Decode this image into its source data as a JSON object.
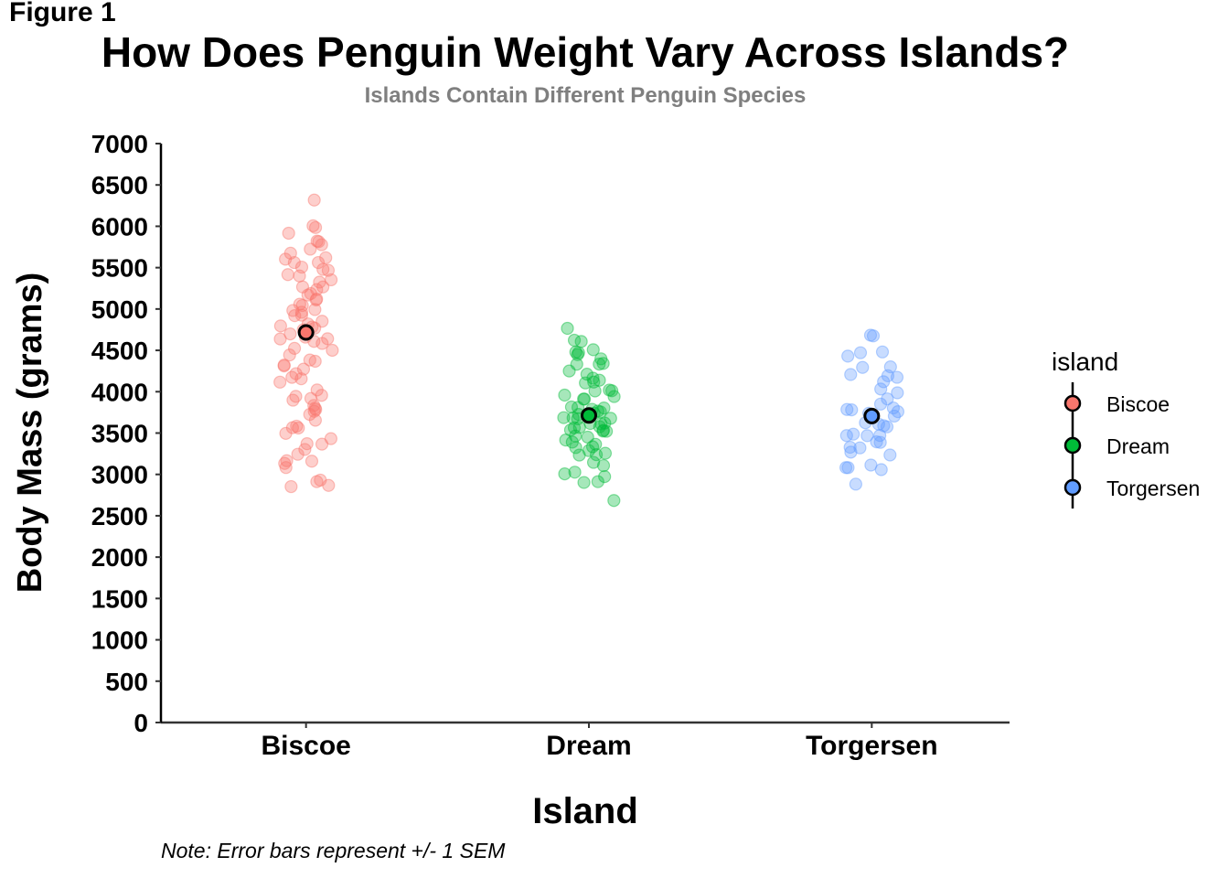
{
  "figure_label": "Figure 1",
  "note": "Note: Error bars represent +/- 1 SEM",
  "colors": {
    "Biscoe": "#F8766D",
    "Dream": "#00BA38",
    "Torgersen": "#619CFF"
  },
  "chart_data": {
    "type": "scatter",
    "title": "How Does Penguin Weight Vary Across Islands?",
    "subtitle": "Islands Contain Different Penguin Species",
    "xlabel": "Island",
    "ylabel": "Body Mass (grams)",
    "ylim": [
      0,
      7000
    ],
    "yticks": [
      0,
      500,
      1000,
      1500,
      2000,
      2500,
      3000,
      3500,
      4000,
      4500,
      5000,
      5500,
      6000,
      6500,
      7000
    ],
    "categories": [
      "Biscoe",
      "Dream",
      "Torgersen"
    ],
    "grid": false,
    "legend": {
      "title": "island",
      "position": "right",
      "entries": [
        "Biscoe",
        "Dream",
        "Torgersen"
      ]
    },
    "means": [
      4716,
      3713,
      3706
    ],
    "sem": [
      43,
      28,
      59
    ],
    "series": [
      {
        "name": "Biscoe",
        "values": [
          6300,
          6050,
          6000,
          5950,
          5850,
          5800,
          5750,
          5700,
          5700,
          5650,
          5600,
          5550,
          5550,
          5500,
          5500,
          5450,
          5400,
          5400,
          5350,
          5300,
          5300,
          5250,
          5200,
          5200,
          5150,
          5100,
          5100,
          5050,
          5000,
          5000,
          4950,
          4950,
          4900,
          4900,
          4850,
          4850,
          4800,
          4800,
          4750,
          4750,
          4700,
          4700,
          4650,
          4650,
          4600,
          4600,
          4550,
          4500,
          4450,
          4400,
          4400,
          4350,
          4300,
          4300,
          4250,
          4200,
          4150,
          4100,
          4050,
          4000,
          3950,
          3900,
          3900,
          3850,
          3800,
          3800,
          3750,
          3700,
          3650,
          3600,
          3550,
          3550,
          3500,
          3450,
          3400,
          3350,
          3300,
          3200,
          3200,
          3150,
          3100,
          3050,
          2950,
          2900,
          2850,
          2850
        ]
      },
      {
        "name": "Dream",
        "values": [
          4800,
          4650,
          4600,
          4550,
          4500,
          4500,
          4450,
          4400,
          4350,
          4300,
          4300,
          4250,
          4200,
          4150,
          4150,
          4100,
          4100,
          4050,
          4000,
          4000,
          3950,
          3950,
          3900,
          3900,
          3850,
          3850,
          3800,
          3800,
          3800,
          3750,
          3750,
          3750,
          3700,
          3700,
          3700,
          3650,
          3650,
          3650,
          3600,
          3600,
          3600,
          3550,
          3550,
          3550,
          3500,
          3500,
          3450,
          3450,
          3400,
          3400,
          3350,
          3350,
          3300,
          3300,
          3250,
          3250,
          3200,
          3150,
          3100,
          3050,
          3000,
          3000,
          2950,
          2900,
          2700
        ]
      },
      {
        "name": "Torgersen",
        "values": [
          4700,
          4675,
          4500,
          4450,
          4400,
          4300,
          4250,
          4250,
          4200,
          4200,
          4150,
          4000,
          4000,
          3900,
          3850,
          3800,
          3800,
          3750,
          3750,
          3700,
          3700,
          3650,
          3600,
          3600,
          3550,
          3500,
          3500,
          3450,
          3450,
          3400,
          3350,
          3300,
          3300,
          3250,
          3200,
          3150,
          3100,
          3050,
          3050,
          2900
        ]
      }
    ]
  }
}
